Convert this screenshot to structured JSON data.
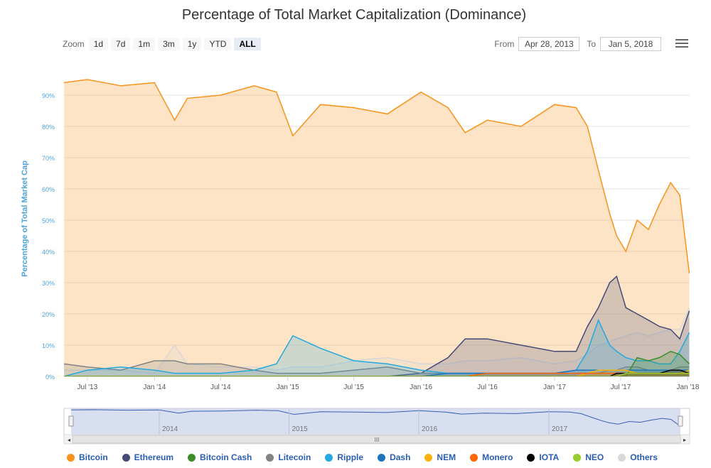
{
  "title": "Percentage of Total Market Capitalization (Dominance)",
  "range_selector": {
    "zoom_label": "Zoom",
    "buttons": [
      "1d",
      "7d",
      "1m",
      "3m",
      "1y",
      "YTD",
      "ALL"
    ],
    "active": "ALL",
    "from_label": "From",
    "from_value": "Apr 28, 2013",
    "to_label": "To",
    "to_value": "Jan 5, 2018"
  },
  "menu_icon": "hamburger-icon",
  "navigator": {
    "year_labels": [
      "2014",
      "2015",
      "2016",
      "2017"
    ],
    "scroll_grip": "III"
  },
  "chart_data": {
    "type": "area",
    "title": "Percentage of Total Market Capitalization (Dominance)",
    "ylabel": "Percentage of Total Market Cap",
    "xlabel": "",
    "ylim": [
      0,
      100
    ],
    "grid": true,
    "legend_position": "bottom",
    "x_tick_labels": [
      "Jul '13",
      "Jan '14",
      "Jul '14",
      "Jan '15",
      "Jul '15",
      "Jan '16",
      "Jul '16",
      "Jan '17",
      "Jul '17",
      "Jan '18"
    ],
    "y_tick_labels": [
      "0%",
      "10%",
      "20%",
      "30%",
      "40%",
      "50%",
      "60%",
      "70%",
      "80%",
      "90%"
    ],
    "x": [
      "2013-04-28",
      "2013-07-01",
      "2013-10-01",
      "2014-01-01",
      "2014-02-25",
      "2014-04-01",
      "2014-07-01",
      "2014-10-01",
      "2014-12-01",
      "2015-01-15",
      "2015-04-01",
      "2015-07-01",
      "2015-10-01",
      "2016-01-01",
      "2016-03-15",
      "2016-05-01",
      "2016-07-01",
      "2016-10-01",
      "2017-01-01",
      "2017-03-01",
      "2017-04-01",
      "2017-05-01",
      "2017-06-01",
      "2017-06-20",
      "2017-07-15",
      "2017-08-15",
      "2017-09-15",
      "2017-10-15",
      "2017-11-15",
      "2017-12-10",
      "2018-01-05"
    ],
    "series": [
      {
        "name": "Bitcoin",
        "color": "#f7931a",
        "values": [
          94,
          95,
          93,
          94,
          82,
          89,
          90,
          93,
          91,
          77,
          87,
          86,
          84,
          91,
          86,
          78,
          82,
          80,
          87,
          86,
          80,
          66,
          52,
          45,
          40,
          50,
          47,
          55,
          62,
          58,
          33
        ]
      },
      {
        "name": "Ethereum",
        "color": "#454a75",
        "values": [
          0,
          0,
          0,
          0,
          0,
          0,
          0,
          0,
          0,
          0,
          0,
          0,
          0,
          1,
          6,
          12,
          12,
          10,
          8,
          8,
          16,
          22,
          30,
          32,
          22,
          20,
          18,
          16,
          15,
          12,
          21
        ]
      },
      {
        "name": "Bitcoin Cash",
        "color": "#3c8c2b",
        "values": [
          0,
          0,
          0,
          0,
          0,
          0,
          0,
          0,
          0,
          0,
          0,
          0,
          0,
          0,
          0,
          0,
          0,
          0,
          0,
          0,
          0,
          0,
          0,
          0,
          0,
          6,
          5,
          6,
          8,
          7,
          4
        ]
      },
      {
        "name": "Litecoin",
        "color": "#838383",
        "values": [
          4,
          3,
          2,
          5,
          5,
          4,
          4,
          2,
          1,
          1,
          1,
          2,
          3,
          1,
          1,
          1,
          1,
          1,
          1,
          1,
          1,
          1,
          2,
          2,
          3,
          3,
          2,
          2,
          2,
          3,
          3
        ]
      },
      {
        "name": "Ripple",
        "color": "#23a9e0",
        "values": [
          0,
          2,
          3,
          2,
          1,
          1,
          1,
          2,
          4,
          13,
          9,
          5,
          4,
          2,
          1,
          1,
          1,
          1,
          1,
          2,
          8,
          18,
          10,
          8,
          6,
          5,
          5,
          4,
          4,
          8,
          14
        ]
      },
      {
        "name": "Dash",
        "color": "#1c75bc",
        "values": [
          0,
          0,
          0,
          0,
          0,
          0,
          0,
          0,
          0,
          0,
          0,
          0,
          0,
          0,
          1,
          1,
          1,
          1,
          1,
          2,
          2,
          2,
          2,
          2,
          2,
          2,
          2,
          2,
          2,
          2,
          2
        ]
      },
      {
        "name": "NEM",
        "color": "#fab20b",
        "values": [
          0,
          0,
          0,
          0,
          0,
          0,
          0,
          0,
          0,
          0,
          0,
          0,
          0,
          0,
          0,
          0,
          0,
          0,
          0,
          0,
          1,
          2,
          2,
          2,
          2,
          1,
          1,
          1,
          1,
          1,
          2
        ]
      },
      {
        "name": "Monero",
        "color": "#ff6600",
        "values": [
          0,
          0,
          0,
          0,
          0,
          0,
          0,
          0,
          0,
          0,
          0,
          0,
          0,
          0,
          0,
          0,
          1,
          1,
          1,
          1,
          1,
          1,
          1,
          1,
          1,
          1,
          1,
          1,
          1,
          1,
          1
        ]
      },
      {
        "name": "IOTA",
        "color": "#000000",
        "values": [
          0,
          0,
          0,
          0,
          0,
          0,
          0,
          0,
          0,
          0,
          0,
          0,
          0,
          0,
          0,
          0,
          0,
          0,
          0,
          0,
          0,
          0,
          0,
          1,
          1,
          1,
          1,
          1,
          2,
          2,
          1
        ]
      },
      {
        "name": "NEO",
        "color": "#9acc2b",
        "values": [
          0,
          0,
          0,
          0,
          0,
          0,
          0,
          0,
          0,
          0,
          0,
          0,
          0,
          0,
          0,
          0,
          0,
          0,
          0,
          0,
          0,
          0,
          0,
          0,
          1,
          1,
          1,
          1,
          1,
          1,
          1
        ]
      },
      {
        "name": "Others",
        "color": "#d8d8d8",
        "values": [
          2,
          2,
          2,
          1,
          10,
          4,
          3,
          3,
          2,
          3,
          3,
          5,
          6,
          4,
          4,
          5,
          5,
          6,
          4,
          5,
          7,
          10,
          11,
          12,
          13,
          14,
          13,
          14,
          15,
          15,
          22
        ]
      }
    ]
  }
}
